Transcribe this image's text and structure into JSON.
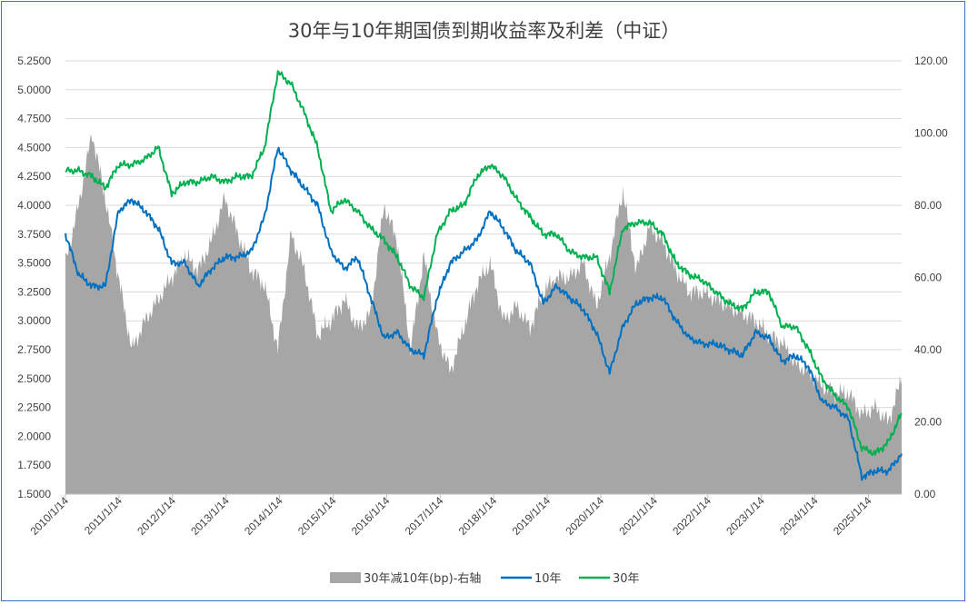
{
  "chart_data": {
    "type": "line",
    "title": "30年与10年期国债到期收益率及利差（中证）",
    "xlabel": "",
    "ylabel": "",
    "x_tick_labels": [
      "2010/1/14",
      "2011/1/14",
      "2012/1/14",
      "2013/1/14",
      "2014/1/14",
      "2015/1/14",
      "2016/1/14",
      "2017/1/14",
      "2018/1/14",
      "2019/1/14",
      "2020/1/14",
      "2021/1/14",
      "2022/1/14",
      "2023/1/14",
      "2024/1/14",
      "2025/1/14"
    ],
    "y_left": {
      "min": 1.5,
      "max": 5.25,
      "ticks": [
        "1.5000",
        "1.7500",
        "2.0000",
        "2.2500",
        "2.5000",
        "2.7500",
        "3.0000",
        "3.2500",
        "3.5000",
        "3.7500",
        "4.0000",
        "4.2500",
        "4.5000",
        "4.7500",
        "5.0000",
        "5.2500"
      ]
    },
    "y_right": {
      "min": 0,
      "max": 120,
      "ticks": [
        "0.00",
        "20.00",
        "40.00",
        "60.00",
        "80.00",
        "100.00",
        "120.00"
      ]
    },
    "grid": "horizontal",
    "legend_position": "bottom",
    "x": [
      "2010-01",
      "2010-04",
      "2010-07",
      "2010-10",
      "2011-01",
      "2011-04",
      "2011-07",
      "2011-10",
      "2012-01",
      "2012-04",
      "2012-07",
      "2012-10",
      "2013-01",
      "2013-04",
      "2013-07",
      "2013-10",
      "2014-01",
      "2014-04",
      "2014-07",
      "2014-10",
      "2015-01",
      "2015-04",
      "2015-07",
      "2015-10",
      "2016-01",
      "2016-04",
      "2016-07",
      "2016-10",
      "2017-01",
      "2017-04",
      "2017-07",
      "2017-10",
      "2018-01",
      "2018-04",
      "2018-07",
      "2018-10",
      "2019-01",
      "2019-04",
      "2019-07",
      "2019-10",
      "2020-01",
      "2020-04",
      "2020-07",
      "2020-10",
      "2021-01",
      "2021-04",
      "2021-07",
      "2021-10",
      "2022-01",
      "2022-04",
      "2022-07",
      "2022-10",
      "2023-01",
      "2023-04",
      "2023-07",
      "2023-10",
      "2024-01",
      "2024-04",
      "2024-07",
      "2024-10",
      "2025-01",
      "2025-04",
      "2025-07",
      "2025-09"
    ],
    "series": [
      {
        "name": "30年减10年(bp)-右轴",
        "kind": "area",
        "axis": "right",
        "color": "#a6a6a6",
        "values": [
          64,
          80,
          100,
          82,
          60,
          40,
          48,
          54,
          60,
          66,
          62,
          70,
          82,
          72,
          62,
          58,
          40,
          72,
          62,
          44,
          48,
          54,
          46,
          50,
          80,
          70,
          40,
          66,
          44,
          34,
          46,
          58,
          64,
          48,
          52,
          46,
          56,
          60,
          60,
          64,
          52,
          66,
          84,
          62,
          74,
          70,
          62,
          56,
          56,
          54,
          52,
          50,
          48,
          44,
          42,
          36,
          34,
          30,
          28,
          28,
          22,
          24,
          20,
          32
        ]
      },
      {
        "name": "10年",
        "kind": "line",
        "axis": "left",
        "color": "#0070c0",
        "values": [
          3.75,
          3.4,
          3.3,
          3.3,
          3.95,
          4.05,
          3.95,
          3.8,
          3.5,
          3.5,
          3.3,
          3.45,
          3.55,
          3.55,
          3.6,
          3.9,
          4.5,
          4.3,
          4.15,
          4.0,
          3.6,
          3.45,
          3.55,
          3.2,
          2.85,
          2.9,
          2.75,
          2.7,
          3.2,
          3.5,
          3.6,
          3.7,
          3.95,
          3.8,
          3.6,
          3.5,
          3.15,
          3.3,
          3.2,
          3.1,
          2.9,
          2.55,
          2.95,
          3.15,
          3.2,
          3.2,
          3.0,
          2.85,
          2.8,
          2.8,
          2.75,
          2.7,
          2.9,
          2.85,
          2.65,
          2.7,
          2.6,
          2.3,
          2.25,
          2.15,
          1.65,
          1.7,
          1.7,
          1.85
        ]
      },
      {
        "name": "30年",
        "kind": "line",
        "axis": "left",
        "color": "#00b050",
        "values": [
          4.3,
          4.3,
          4.25,
          4.15,
          4.35,
          4.35,
          4.4,
          4.5,
          4.1,
          4.2,
          4.2,
          4.25,
          4.2,
          4.25,
          4.25,
          4.5,
          5.15,
          5.05,
          4.8,
          4.5,
          3.95,
          4.05,
          3.95,
          3.8,
          3.7,
          3.55,
          3.3,
          3.2,
          3.75,
          3.95,
          4.0,
          4.25,
          4.35,
          4.25,
          4.05,
          3.9,
          3.75,
          3.75,
          3.6,
          3.55,
          3.55,
          3.25,
          3.8,
          3.85,
          3.85,
          3.75,
          3.5,
          3.4,
          3.35,
          3.25,
          3.15,
          3.1,
          3.25,
          3.25,
          2.95,
          2.95,
          2.75,
          2.5,
          2.35,
          2.25,
          1.9,
          1.85,
          1.95,
          2.2
        ]
      }
    ]
  }
}
